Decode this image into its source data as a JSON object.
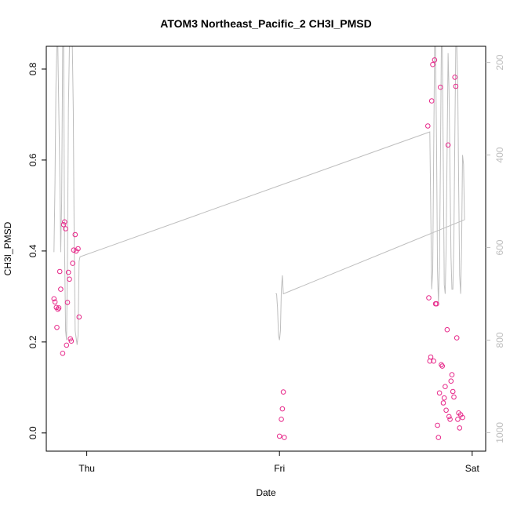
{
  "chart_data": {
    "type": "scatter",
    "title": "ATOM3 Northeast_Pacific_2 CH3I_PMSD",
    "xlabel": "Date",
    "ylabel": "CH3I_PMSD",
    "xticks": [
      {
        "value": 0.0,
        "label": "Thu"
      },
      {
        "value": 1.0,
        "label": "Fri"
      },
      {
        "value": 2.0,
        "label": "Sat"
      }
    ],
    "xlim": [
      -0.21,
      2.07
    ],
    "ylim": [
      -0.04,
      0.85
    ],
    "yticks": [
      0.0,
      0.2,
      0.4,
      0.6,
      0.8
    ],
    "y2ticks": [
      200,
      400,
      600,
      800,
      1000
    ],
    "y2lim": [
      1040,
      165
    ],
    "colors": {
      "points": "#E7298A",
      "pressure_line": "#BEBEBE",
      "axis": "#000000",
      "axis2": "#BEBEBE"
    },
    "series": [
      {
        "points": [
          [
            -0.17,
            0.295
          ],
          [
            -0.165,
            0.288
          ],
          [
            -0.158,
            0.276
          ],
          [
            -0.155,
            0.232
          ],
          [
            -0.15,
            0.272
          ],
          [
            -0.145,
            0.275
          ],
          [
            -0.14,
            0.355
          ],
          [
            -0.135,
            0.316
          ],
          [
            -0.125,
            0.175
          ],
          [
            -0.12,
            0.458
          ],
          [
            -0.115,
            0.464
          ],
          [
            -0.11,
            0.449
          ],
          [
            -0.105,
            0.193
          ],
          [
            -0.1,
            0.287
          ],
          [
            -0.095,
            0.353
          ],
          [
            -0.09,
            0.338
          ],
          [
            -0.085,
            0.207
          ],
          [
            -0.08,
            0.202
          ],
          [
            -0.073,
            0.373
          ],
          [
            -0.068,
            0.402
          ],
          [
            -0.06,
            0.436
          ],
          [
            -0.055,
            0.4
          ],
          [
            -0.045,
            0.405
          ],
          [
            -0.04,
            0.255
          ],
          [
            1.0,
            -0.007
          ],
          [
            1.01,
            0.03
          ],
          [
            1.015,
            0.053
          ],
          [
            1.02,
            0.09
          ],
          [
            1.025,
            -0.01
          ],
          [
            1.77,
            0.675
          ],
          [
            1.775,
            0.297
          ],
          [
            1.78,
            0.158
          ],
          [
            1.785,
            0.167
          ],
          [
            1.79,
            0.73
          ],
          [
            1.795,
            0.81
          ],
          [
            1.8,
            0.158
          ],
          [
            1.805,
            0.82
          ],
          [
            1.81,
            0.284
          ],
          [
            1.815,
            0.284
          ],
          [
            1.82,
            0.017
          ],
          [
            1.825,
            -0.01
          ],
          [
            1.83,
            0.088
          ],
          [
            1.835,
            0.76
          ],
          [
            1.84,
            0.15
          ],
          [
            1.845,
            0.147
          ],
          [
            1.85,
            0.066
          ],
          [
            1.855,
            0.077
          ],
          [
            1.86,
            0.102
          ],
          [
            1.865,
            0.05
          ],
          [
            1.87,
            0.227
          ],
          [
            1.875,
            0.633
          ],
          [
            1.88,
            0.036
          ],
          [
            1.885,
            0.03
          ],
          [
            1.89,
            0.114
          ],
          [
            1.895,
            0.128
          ],
          [
            1.9,
            0.091
          ],
          [
            1.905,
            0.079
          ],
          [
            1.91,
            0.782
          ],
          [
            1.915,
            0.762
          ],
          [
            1.92,
            0.209
          ],
          [
            1.925,
            0.03
          ],
          [
            1.93,
            0.044
          ],
          [
            1.935,
            0.011
          ],
          [
            1.94,
            0.04
          ],
          [
            1.95,
            0.034
          ]
        ]
      }
    ],
    "pressure_line": [
      [
        -0.17,
        610
      ],
      [
        -0.165,
        460
      ],
      [
        -0.16,
        250
      ],
      [
        -0.155,
        165
      ],
      [
        -0.15,
        165
      ],
      [
        -0.14,
        440
      ],
      [
        -0.135,
        610
      ],
      [
        -0.13,
        500
      ],
      [
        -0.125,
        165
      ],
      [
        -0.12,
        165
      ],
      [
        -0.115,
        600
      ],
      [
        -0.11,
        780
      ],
      [
        -0.105,
        800
      ],
      [
        -0.1,
        620
      ],
      [
        -0.095,
        300
      ],
      [
        -0.09,
        165
      ],
      [
        -0.075,
        165
      ],
      [
        -0.07,
        300
      ],
      [
        -0.065,
        600
      ],
      [
        -0.06,
        780
      ],
      [
        -0.05,
        810
      ],
      [
        -0.045,
        790
      ],
      [
        -0.04,
        630
      ],
      [
        -0.035,
        620
      ],
      [
        1.78,
        350
      ],
      [
        1.785,
        520
      ],
      [
        1.79,
        690
      ],
      [
        1.795,
        650
      ],
      [
        1.8,
        400
      ],
      [
        1.805,
        165
      ],
      [
        1.81,
        165
      ],
      [
        1.815,
        380
      ],
      [
        1.82,
        650
      ],
      [
        1.825,
        720
      ],
      [
        1.83,
        640
      ],
      [
        1.835,
        420
      ],
      [
        1.84,
        165
      ],
      [
        1.845,
        165
      ],
      [
        1.85,
        420
      ],
      [
        1.855,
        680
      ],
      [
        1.86,
        700
      ],
      [
        1.865,
        600
      ],
      [
        1.87,
        380
      ],
      [
        1.875,
        180
      ],
      [
        1.88,
        260
      ],
      [
        1.885,
        450
      ],
      [
        1.89,
        620
      ],
      [
        1.895,
        690
      ],
      [
        1.9,
        690
      ],
      [
        1.905,
        580
      ],
      [
        1.91,
        360
      ],
      [
        1.915,
        165
      ],
      [
        1.92,
        165
      ],
      [
        1.925,
        250
      ],
      [
        1.93,
        470
      ],
      [
        1.935,
        660
      ],
      [
        1.94,
        700
      ],
      [
        1.945,
        600
      ],
      [
        1.95,
        400
      ],
      [
        1.955,
        420
      ],
      [
        1.96,
        540
      ],
      [
        1.02,
        700
      ],
      [
        1.015,
        660
      ],
      [
        1.01,
        690
      ],
      [
        1.005,
        780
      ],
      [
        1.0,
        800
      ],
      [
        0.995,
        790
      ],
      [
        0.99,
        730
      ],
      [
        0.985,
        700
      ],
      [
        0.98,
        700
      ]
    ]
  }
}
